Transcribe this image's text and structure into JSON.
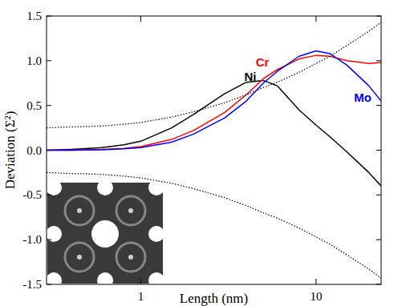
{
  "chart_data": {
    "type": "line",
    "x_label": "Length (nm)",
    "y_label": "Deviation (Σ²)",
    "log": "x",
    "xlim": [
      0.29,
      23.5
    ],
    "xticks": [
      1,
      10
    ],
    "ylim": [
      -1.5,
      1.5
    ],
    "yticks": [
      {
        "value": -1.5,
        "label": "-1.5"
      },
      {
        "value": -1,
        "label": "-1.0"
      },
      {
        "value": -0.5,
        "label": "-0.5"
      },
      {
        "value": 0,
        "label": "0.0"
      },
      {
        "value": 0.5,
        "label": "0.5"
      },
      {
        "value": 1,
        "label": "1.0"
      },
      {
        "value": 1.5,
        "label": "1.5"
      }
    ],
    "x": [
      0.29,
      0.4,
      0.6,
      0.8,
      1,
      1.5,
      2,
      3,
      4,
      5,
      6,
      8,
      10,
      12,
      15,
      20,
      23.5
    ],
    "series": [
      {
        "name": "Ni",
        "color": "#000000",
        "line_style": "solid",
        "values": [
          0,
          0.01,
          0.03,
          0.06,
          0.1,
          0.25,
          0.4,
          0.63,
          0.76,
          0.78,
          0.72,
          0.45,
          0.28,
          0.15,
          -0.02,
          -0.25,
          -0.4
        ]
      },
      {
        "name": "Cr",
        "color": "#ff0000",
        "line_style": "solid",
        "values": [
          0,
          0,
          0.01,
          0.02,
          0.04,
          0.12,
          0.22,
          0.42,
          0.62,
          0.8,
          0.9,
          1.02,
          1.06,
          1.05,
          1.0,
          0.97,
          0.98
        ]
      },
      {
        "name": "Mo",
        "color": "#0000ff",
        "line_style": "solid",
        "values": [
          0,
          0,
          0.005,
          0.015,
          0.03,
          0.09,
          0.18,
          0.36,
          0.55,
          0.75,
          0.88,
          1.05,
          1.11,
          1.08,
          0.95,
          0.72,
          0.55
        ]
      },
      {
        "color": "#000000",
        "line_style": "dotted",
        "values": [
          0.25,
          0.26,
          0.27,
          0.29,
          0.31,
          0.37,
          0.43,
          0.53,
          0.62,
          0.7,
          0.76,
          0.87,
          0.97,
          1.05,
          1.17,
          1.33,
          1.43
        ]
      },
      {
        "color": "#000000",
        "line_style": "dotted",
        "values": [
          -0.25,
          -0.26,
          -0.27,
          -0.29,
          -0.31,
          -0.37,
          -0.43,
          -0.53,
          -0.62,
          -0.7,
          -0.76,
          -0.87,
          -0.97,
          -1.05,
          -1.17,
          -1.33,
          -1.43
        ]
      }
    ]
  }
}
